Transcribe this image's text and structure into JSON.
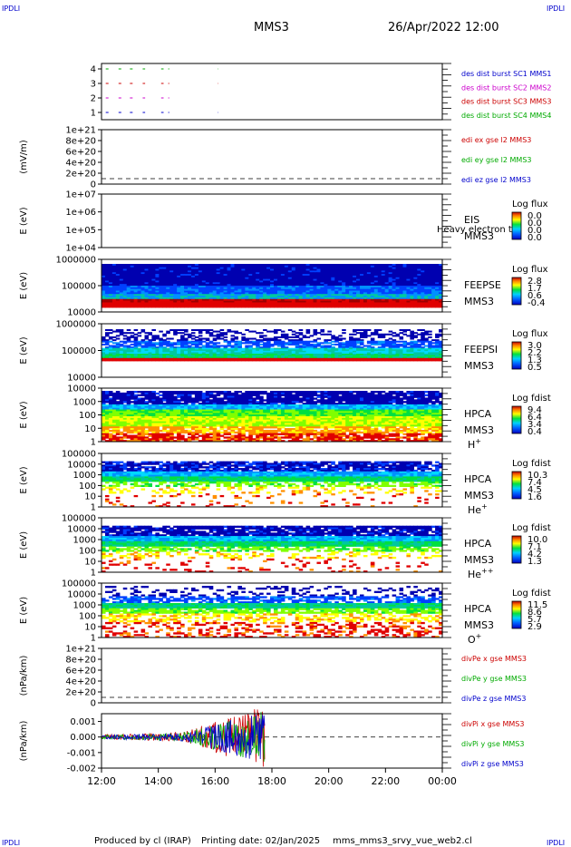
{
  "header": {
    "corner_tl": "IPDLI",
    "corner_tr": "IPDLI",
    "corner_bl": "IPDLI",
    "corner_br": "IPDLI",
    "spacecraft": "MMS3",
    "datetime": "26/Apr/2022 12:00"
  },
  "footer": {
    "produced": "Produced by cl (IRAP)",
    "printing": "Printing date: 02/Jan/2025",
    "file": "mms_mms3_srvy_vue_web2.cl"
  },
  "time_axis": {
    "ticks": [
      "12:00",
      "14:00",
      "16:00",
      "18:00",
      "20:00",
      "22:00",
      "00:00"
    ],
    "start_hour": 12,
    "end_hour": 24
  },
  "colors": {
    "blue": "#0000cc",
    "red": "#cc0000",
    "green": "#00aa00",
    "magenta": "#cc00cc"
  },
  "chart_data": [
    {
      "type": "line",
      "name": "burst",
      "yticks": [
        "4",
        "3",
        "2",
        "1"
      ],
      "legend": [
        {
          "label": "des dist burst SC1 MMS1",
          "color": "#0000cc"
        },
        {
          "label": "des dist burst SC2 MMS2",
          "color": "#cc00cc"
        },
        {
          "label": "des dist burst SC3 MMS3",
          "color": "#cc0000"
        },
        {
          "label": "des dist burst SC4 MMS4",
          "color": "#00aa00"
        }
      ],
      "segments_hours": [
        [
          12.15,
          12.35
        ],
        [
          12.6,
          12.8
        ],
        [
          13.0,
          13.2
        ],
        [
          13.45,
          13.6
        ],
        [
          14.1,
          14.25
        ],
        [
          14.35,
          14.45
        ],
        [
          16.1,
          16.15
        ]
      ]
    },
    {
      "type": "line",
      "name": "edi",
      "ylabel": "(mV/m)",
      "yticks": [
        "1e+21",
        "8e+20",
        "6e+20",
        "4e+20",
        "2e+20",
        "0"
      ],
      "legend": [
        {
          "label": "edi ex gse l2 MMS3",
          "color": "#cc0000"
        },
        {
          "label": "edi ey gse l2 MMS3",
          "color": "#00aa00"
        },
        {
          "label": "edi ez gse l2 MMS3",
          "color": "#0000cc"
        }
      ]
    },
    {
      "type": "heatmap",
      "name": "eis",
      "ylabel": "E (eV)",
      "yticks": [
        "1e+07",
        "1e+06",
        "1e+05",
        "1e+04"
      ],
      "instrument": "EIS",
      "overlay": "Heavy electron to",
      "sc": "MMS3",
      "colorbar_title": "Log flux",
      "colorbar_ticks": [
        "0.0",
        "0.0",
        "0.0",
        "0.0"
      ]
    },
    {
      "type": "heatmap",
      "name": "feepse",
      "ylabel": "E (eV)",
      "yticks": [
        "1000000",
        "100000",
        "10000"
      ],
      "instrument": "FEEPSE",
      "sc": "MMS3",
      "colorbar_title": "Log flux",
      "colorbar_ticks": [
        "2.8",
        "1.7",
        "0.6",
        "-0.4"
      ]
    },
    {
      "type": "heatmap",
      "name": "feepsi",
      "ylabel": "E (eV)",
      "yticks": [
        "1000000",
        "100000",
        "10000"
      ],
      "instrument": "FEEPSI",
      "sc": "MMS3",
      "colorbar_title": "Log flux",
      "colorbar_ticks": [
        "3.0",
        "2.2",
        "1.3",
        "0.5"
      ]
    },
    {
      "type": "heatmap",
      "name": "hpca_h",
      "ylabel": "E (eV)",
      "yticks": [
        "10000",
        "1000",
        "100",
        "10",
        "1"
      ],
      "instrument": "HPCA",
      "sc": "MMS3",
      "species": "H",
      "species_sup": "+",
      "colorbar_title": "Log fdist",
      "colorbar_ticks": [
        "9.4",
        "6.4",
        "3.4",
        "0.4"
      ]
    },
    {
      "type": "heatmap",
      "name": "hpca_he",
      "ylabel": "E (eV)",
      "yticks": [
        "100000",
        "10000",
        "1000",
        "100",
        "10",
        "1"
      ],
      "instrument": "HPCA",
      "sc": "MMS3",
      "species": "He",
      "species_sup": "+",
      "colorbar_title": "Log fdist",
      "colorbar_ticks": [
        "10.3",
        "7.4",
        "4.5",
        "1.6"
      ]
    },
    {
      "type": "heatmap",
      "name": "hpca_hepp",
      "ylabel": "E (eV)",
      "yticks": [
        "100000",
        "10000",
        "1000",
        "100",
        "10",
        "1"
      ],
      "instrument": "HPCA",
      "sc": "MMS3",
      "species": "He",
      "species_sup": "++",
      "colorbar_title": "Log fdist",
      "colorbar_ticks": [
        "10.0",
        "7.1",
        "4.2",
        "1.3"
      ]
    },
    {
      "type": "heatmap",
      "name": "hpca_o",
      "ylabel": "E (eV)",
      "yticks": [
        "100000",
        "10000",
        "1000",
        "100",
        "10",
        "1"
      ],
      "instrument": "HPCA",
      "sc": "MMS3",
      "species": "O",
      "species_sup": "+",
      "colorbar_title": "Log fdist",
      "colorbar_ticks": [
        "11.5",
        "8.6",
        "5.7",
        "2.9"
      ]
    },
    {
      "type": "line",
      "name": "divpe",
      "ylabel": "(nPa/km)",
      "yticks": [
        "1e+21",
        "8e+20",
        "6e+20",
        "4e+20",
        "2e+20",
        "0"
      ],
      "legend": [
        {
          "label": "divPe x gse MMS3",
          "color": "#cc0000"
        },
        {
          "label": "divPe y gse MMS3",
          "color": "#00aa00"
        },
        {
          "label": "divPe z gse MMS3",
          "color": "#0000cc"
        }
      ]
    },
    {
      "type": "line",
      "name": "divpi",
      "ylabel": "(nPa/km)",
      "yticks": [
        "0.001",
        "0.000",
        "-0.001",
        "-0.002"
      ],
      "ylim": [
        -0.002,
        0.0015
      ],
      "data_end_hour": 17.75,
      "legend": [
        {
          "label": "divPi x gse MMS3",
          "color": "#cc0000"
        },
        {
          "label": "divPi y gse MMS3",
          "color": "#00aa00"
        },
        {
          "label": "divPi z gse MMS3",
          "color": "#0000cc"
        }
      ]
    }
  ]
}
